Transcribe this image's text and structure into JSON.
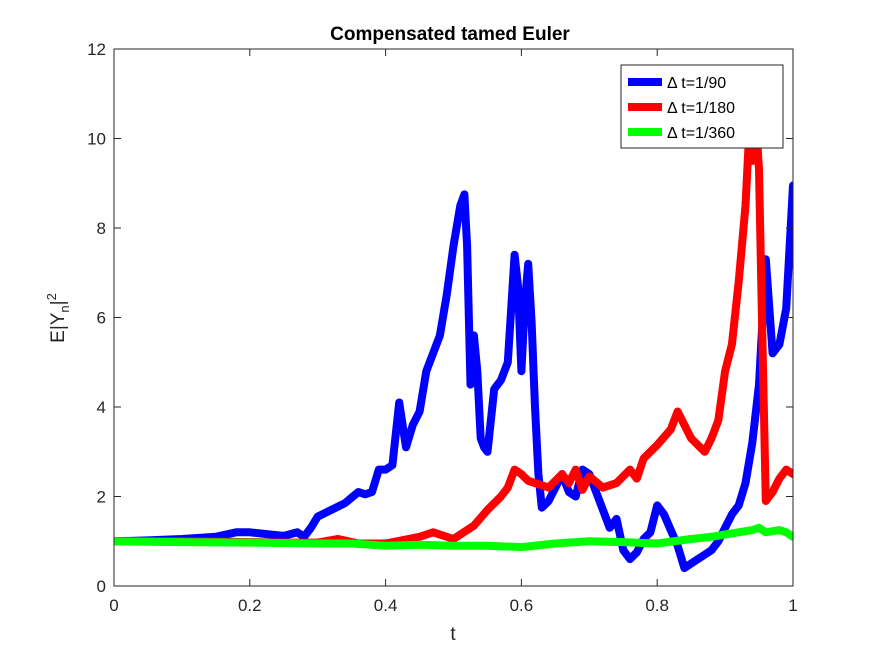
{
  "chart_data": {
    "type": "line",
    "title": "Compensated tamed Euler",
    "xlabel": "t",
    "ylabel": {
      "main": "E|Y",
      "sub": "n",
      "rest": "|",
      "sup": "2"
    },
    "xlim": [
      0,
      1
    ],
    "ylim": [
      0,
      12
    ],
    "xticks": [
      0,
      0.2,
      0.4,
      0.6,
      0.8,
      1
    ],
    "xtick_labels": [
      "0",
      "0.2",
      "0.4",
      "0.6",
      "0.8",
      "1"
    ],
    "yticks": [
      0,
      2,
      4,
      6,
      8,
      10,
      12
    ],
    "ytick_labels": [
      "0",
      "2",
      "4",
      "6",
      "8",
      "10",
      "12"
    ],
    "grid": false,
    "legend_position": "top-right",
    "series": [
      {
        "name": "Δ t=1/90",
        "color": "#0000ff",
        "x": [
          0,
          0.05,
          0.1,
          0.15,
          0.18,
          0.2,
          0.23,
          0.25,
          0.27,
          0.28,
          0.29,
          0.3,
          0.32,
          0.34,
          0.36,
          0.37,
          0.38,
          0.39,
          0.4,
          0.41,
          0.42,
          0.43,
          0.44,
          0.45,
          0.46,
          0.48,
          0.49,
          0.5,
          0.51,
          0.516,
          0.52,
          0.525,
          0.53,
          0.535,
          0.54,
          0.545,
          0.55,
          0.56,
          0.57,
          0.58,
          0.59,
          0.595,
          0.6,
          0.605,
          0.61,
          0.615,
          0.62,
          0.625,
          0.63,
          0.64,
          0.65,
          0.66,
          0.67,
          0.68,
          0.69,
          0.7,
          0.71,
          0.72,
          0.73,
          0.74,
          0.75,
          0.76,
          0.77,
          0.78,
          0.79,
          0.8,
          0.81,
          0.82,
          0.83,
          0.84,
          0.85,
          0.86,
          0.87,
          0.88,
          0.89,
          0.9,
          0.91,
          0.92,
          0.93,
          0.94,
          0.95,
          0.96,
          0.97,
          0.98,
          0.99,
          1.0
        ],
        "y": [
          1.0,
          1.02,
          1.05,
          1.1,
          1.2,
          1.2,
          1.15,
          1.12,
          1.2,
          1.1,
          1.3,
          1.55,
          1.7,
          1.85,
          2.1,
          2.05,
          2.1,
          2.6,
          2.6,
          2.7,
          4.1,
          3.1,
          3.6,
          3.9,
          4.8,
          5.6,
          6.5,
          7.6,
          8.5,
          8.75,
          7.6,
          4.5,
          5.6,
          4.8,
          3.3,
          3.1,
          3.0,
          4.4,
          4.6,
          5.0,
          7.4,
          6.7,
          4.8,
          6.3,
          7.2,
          5.9,
          4.0,
          2.5,
          1.75,
          1.9,
          2.2,
          2.5,
          2.1,
          2.0,
          2.6,
          2.5,
          2.1,
          1.7,
          1.3,
          1.5,
          0.8,
          0.6,
          0.75,
          1.05,
          1.2,
          1.8,
          1.6,
          1.25,
          0.9,
          0.4,
          0.5,
          0.6,
          0.7,
          0.8,
          1.0,
          1.3,
          1.6,
          1.8,
          2.3,
          3.2,
          4.5,
          7.3,
          5.2,
          5.4,
          6.2,
          8.95
        ]
      },
      {
        "name": "Δ t=1/180",
        "color": "#ff0000",
        "x": [
          0,
          0.1,
          0.2,
          0.25,
          0.3,
          0.33,
          0.36,
          0.4,
          0.45,
          0.47,
          0.5,
          0.53,
          0.55,
          0.57,
          0.58,
          0.59,
          0.6,
          0.61,
          0.62,
          0.64,
          0.66,
          0.67,
          0.68,
          0.69,
          0.7,
          0.72,
          0.74,
          0.76,
          0.77,
          0.78,
          0.8,
          0.82,
          0.83,
          0.85,
          0.87,
          0.88,
          0.89,
          0.9,
          0.91,
          0.92,
          0.93,
          0.935,
          0.94,
          0.945,
          0.95,
          0.955,
          0.96,
          0.97,
          0.98,
          0.99,
          1.0
        ],
        "y": [
          1.0,
          1.0,
          0.98,
          0.97,
          0.97,
          1.05,
          0.95,
          0.95,
          1.1,
          1.2,
          1.05,
          1.35,
          1.7,
          2.0,
          2.2,
          2.6,
          2.5,
          2.35,
          2.3,
          2.2,
          2.5,
          2.3,
          2.6,
          2.15,
          2.45,
          2.2,
          2.3,
          2.6,
          2.4,
          2.85,
          3.15,
          3.5,
          3.9,
          3.3,
          3.0,
          3.3,
          3.7,
          4.8,
          5.4,
          6.8,
          8.5,
          10.0,
          9.5,
          10.5,
          9.3,
          5.5,
          1.9,
          2.1,
          2.4,
          2.6,
          2.5
        ]
      },
      {
        "name": "Δ t=1/360",
        "color": "#00ff00",
        "x": [
          0,
          0.1,
          0.2,
          0.3,
          0.35,
          0.4,
          0.45,
          0.5,
          0.55,
          0.6,
          0.65,
          0.7,
          0.75,
          0.8,
          0.85,
          0.88,
          0.9,
          0.92,
          0.94,
          0.95,
          0.96,
          0.98,
          0.99,
          1.0
        ],
        "y": [
          1.0,
          0.98,
          0.97,
          0.95,
          0.95,
          0.9,
          0.92,
          0.9,
          0.9,
          0.87,
          0.95,
          1.0,
          0.98,
          0.95,
          1.05,
          1.1,
          1.15,
          1.2,
          1.25,
          1.3,
          1.2,
          1.25,
          1.2,
          1.1
        ]
      }
    ]
  }
}
